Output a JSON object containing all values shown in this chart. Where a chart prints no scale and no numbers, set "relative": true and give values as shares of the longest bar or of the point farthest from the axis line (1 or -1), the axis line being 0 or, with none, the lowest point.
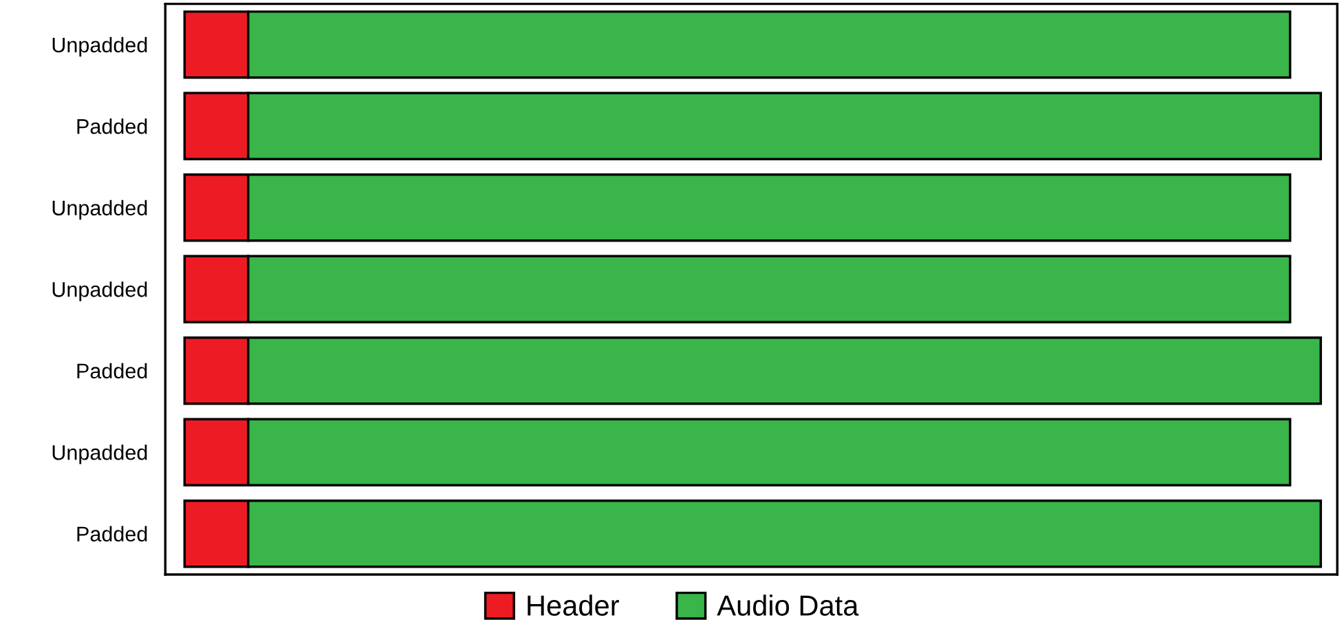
{
  "chart_data": {
    "type": "bar",
    "orientation": "horizontal",
    "stacked": true,
    "relative": true,
    "categories": [
      "Unpadded",
      "Padded",
      "Unpadded",
      "Unpadded",
      "Padded",
      "Unpadded",
      "Padded"
    ],
    "series": [
      {
        "name": "Header",
        "color": "#ed1c24",
        "values": [
          0.056,
          0.056,
          0.056,
          0.056,
          0.056,
          0.056,
          0.056
        ]
      },
      {
        "name": "Audio Data",
        "color": "#39b54a",
        "values": [
          0.917,
          0.944,
          0.917,
          0.917,
          0.944,
          0.917,
          0.944
        ]
      }
    ],
    "legend": "bottom",
    "grid": false,
    "tick_labels": "y"
  }
}
